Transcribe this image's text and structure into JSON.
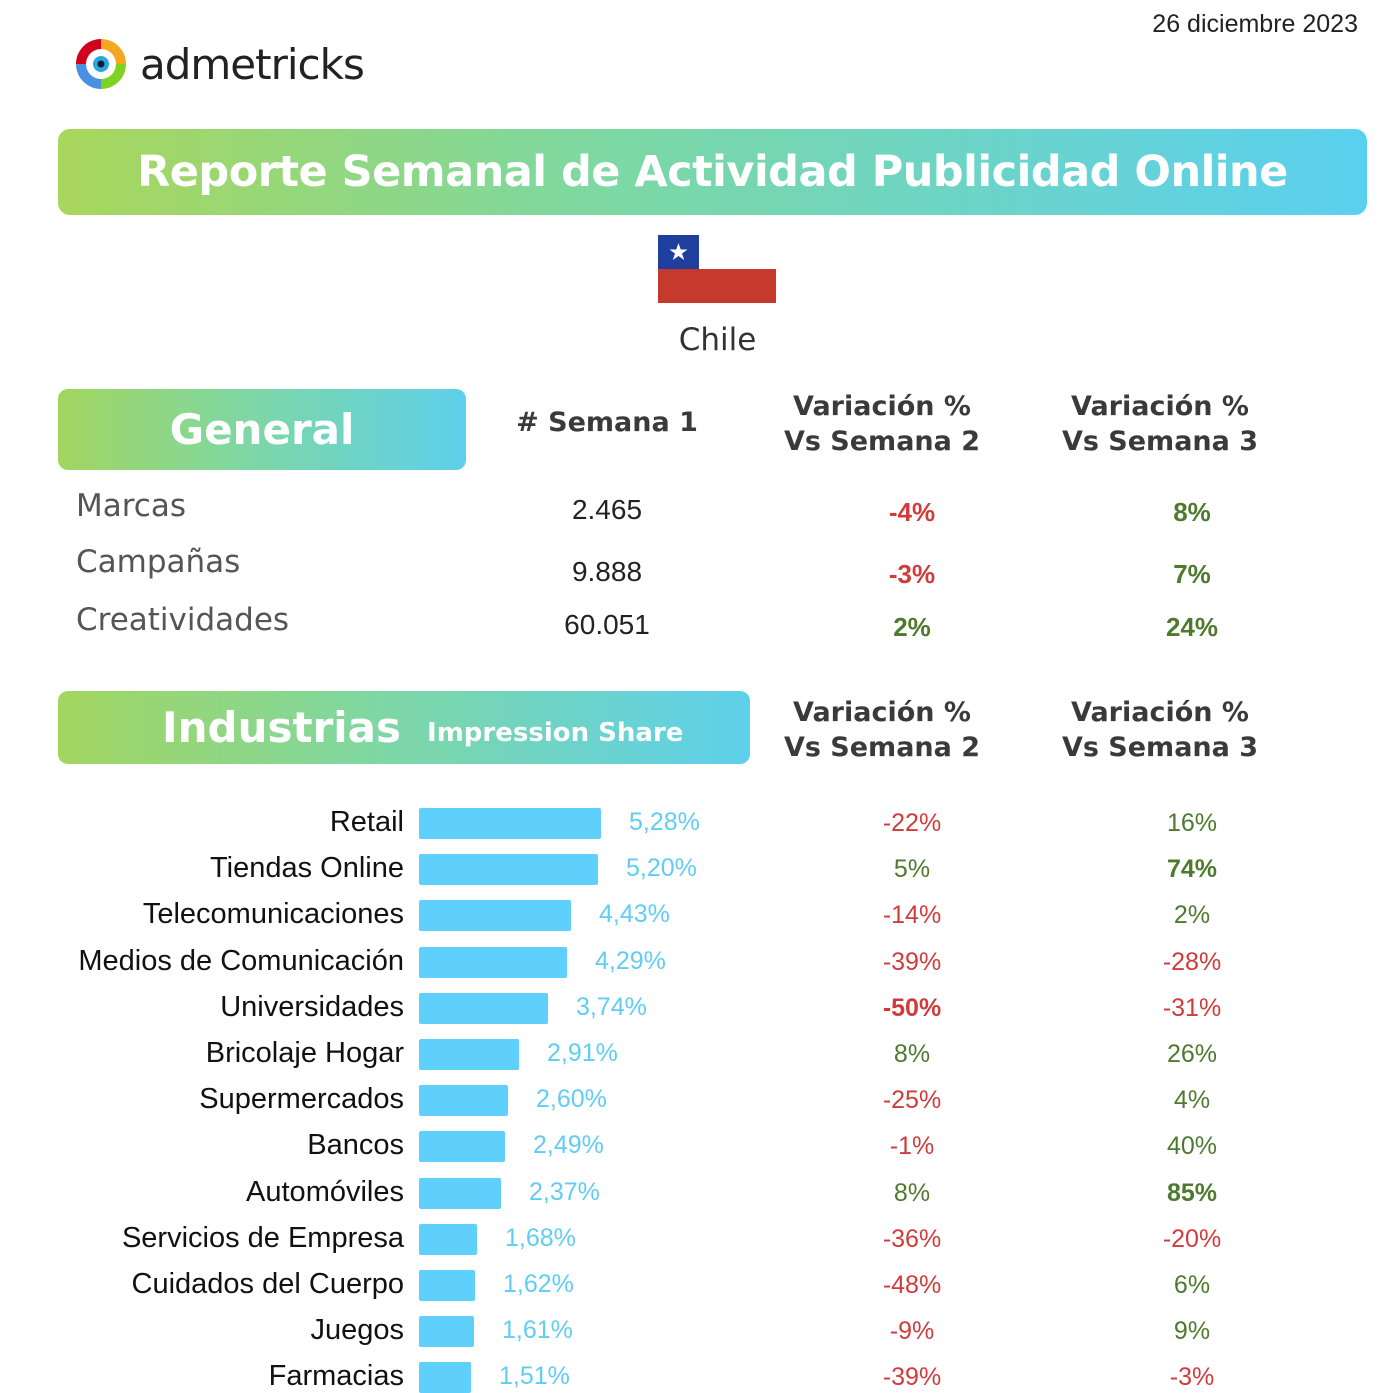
{
  "date": "26 diciembre 2023",
  "logo_text": "admetricks",
  "title": "Reporte Semanal de Actividad Publicidad Online",
  "country": "Chile",
  "general": {
    "section_label": "General",
    "col1": "# Semana 1",
    "col2_line1": "Variación %",
    "col2_line2": "Vs Semana 2",
    "col3_line1": "Variación %",
    "col3_line2": "Vs Semana 3",
    "rows": [
      {
        "label": "Marcas",
        "value": "2.465",
        "v2": "-4%",
        "v3": "8%"
      },
      {
        "label": "Campañas",
        "value": "9.888",
        "v2": "-3%",
        "v3": "7%"
      },
      {
        "label": "Creatividades",
        "value": "60.051",
        "v2": "2%",
        "v3": "24%"
      }
    ]
  },
  "industrias": {
    "section_label": "Industrias",
    "section_sub": "Impression Share",
    "col2_line1": "Variación %",
    "col2_line2": "Vs Semana 2",
    "col3_line1": "Variación %",
    "col3_line2": "Vs Semana 3",
    "rows": [
      {
        "label": "Retail",
        "share": 5.28,
        "share_text": "5,28%",
        "v2": "-22%",
        "v3": "16%"
      },
      {
        "label": "Tiendas Online",
        "share": 5.2,
        "share_text": "5,20%",
        "v2": "5%",
        "v3": "74%"
      },
      {
        "label": "Telecomunicaciones",
        "share": 4.43,
        "share_text": "4,43%",
        "v2": "-14%",
        "v3": "2%"
      },
      {
        "label": "Medios de Comunicación",
        "share": 4.29,
        "share_text": "4,29%",
        "v2": "-39%",
        "v3": "-28%"
      },
      {
        "label": "Universidades",
        "share": 3.74,
        "share_text": "3,74%",
        "v2": "-50%",
        "v3": "-31%"
      },
      {
        "label": "Bricolaje Hogar",
        "share": 2.91,
        "share_text": "2,91%",
        "v2": "8%",
        "v3": "26%"
      },
      {
        "label": "Supermercados",
        "share": 2.6,
        "share_text": "2,60%",
        "v2": "-25%",
        "v3": "4%"
      },
      {
        "label": "Bancos",
        "share": 2.49,
        "share_text": "2,49%",
        "v2": "-1%",
        "v3": "40%"
      },
      {
        "label": "Automóviles",
        "share": 2.37,
        "share_text": "2,37%",
        "v2": "8%",
        "v3": "85%"
      },
      {
        "label": "Servicios de Empresa",
        "share": 1.68,
        "share_text": "1,68%",
        "v2": "-36%",
        "v3": "-20%"
      },
      {
        "label": "Cuidados del Cuerpo",
        "share": 1.62,
        "share_text": "1,62%",
        "v2": "-48%",
        "v3": "6%"
      },
      {
        "label": "Juegos",
        "share": 1.61,
        "share_text": "1,61%",
        "v2": "-9%",
        "v3": "9%"
      },
      {
        "label": "Farmacias",
        "share": 1.51,
        "share_text": "1,51%",
        "v2": "-39%",
        "v3": "-3%"
      }
    ]
  },
  "colors": {
    "negative": "#d23b3b",
    "positive": "#4e7a2e",
    "bar": "#5ed0fb"
  },
  "highlighted": [
    "v3:74%",
    "v2:-50%",
    "v3:85%"
  ]
}
